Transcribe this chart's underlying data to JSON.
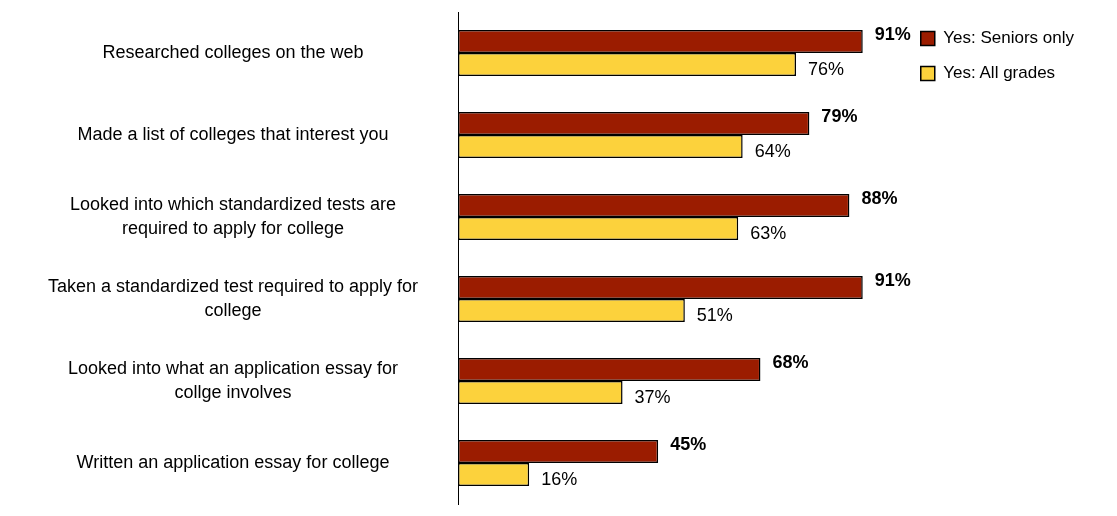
{
  "chart_data": {
    "type": "bar",
    "orientation": "horizontal",
    "categories": [
      "Researched colleges on the web",
      "Made a list of colleges that interest you",
      "Looked into which standardized tests are required to apply for college",
      "Taken a standardized test required to apply for college",
      "Looked into what an application essay for collge involves",
      "Written an application essay for college"
    ],
    "series": [
      {
        "name": "Yes: Seniors only",
        "color": "#9b1c00",
        "values": [
          91,
          79,
          88,
          91,
          68,
          45
        ],
        "value_labels": [
          "91%",
          "79%",
          "88%",
          "91%",
          "68%",
          "45%"
        ]
      },
      {
        "name": "Yes: All grades",
        "color": "#fcd23c",
        "values": [
          76,
          64,
          63,
          51,
          37,
          16
        ],
        "value_labels": [
          "76%",
          "64%",
          "63%",
          "51%",
          "37%",
          "16%"
        ]
      }
    ],
    "data_labels": true,
    "legend": "top right",
    "grid": false
  }
}
